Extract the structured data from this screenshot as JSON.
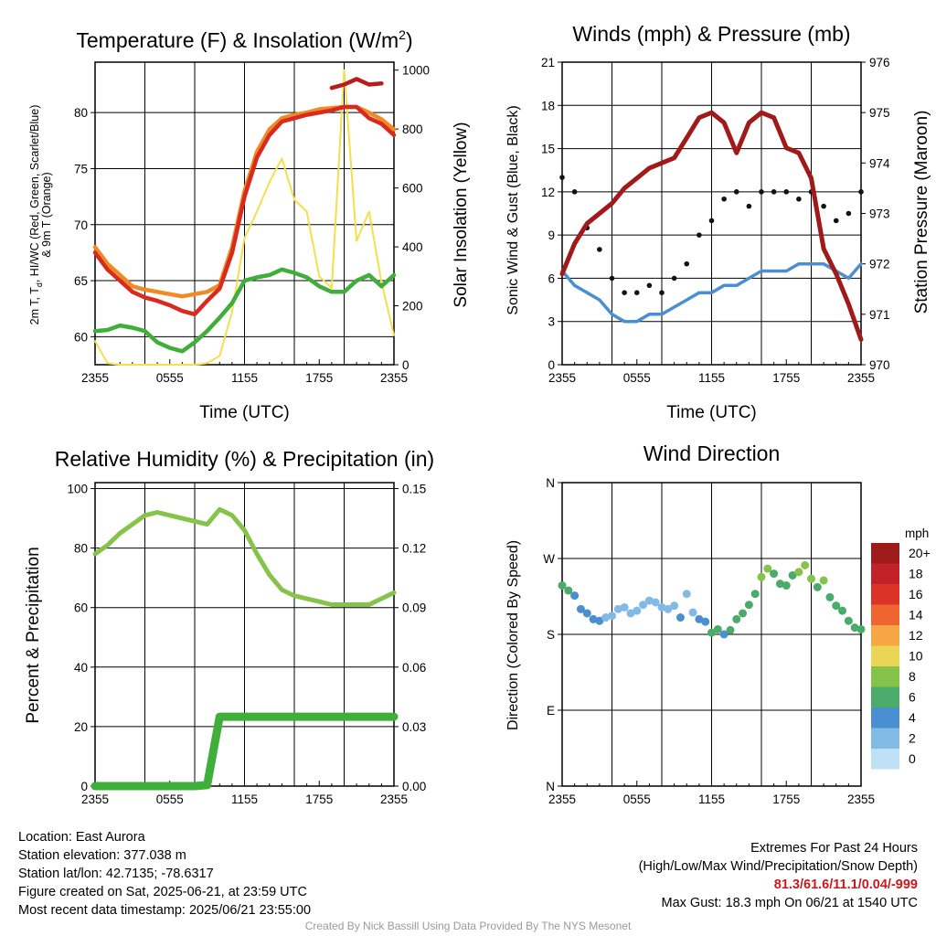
{
  "x_ticks": [
    "2355",
    "0555",
    "1155",
    "1755",
    "2355"
  ],
  "chart_data": [
    {
      "type": "line",
      "title": "Temperature (F) & Insolation (W/m",
      "title_sup": "2",
      "title_end": ")",
      "xlabel": "Time (UTC)",
      "ylabel_lines": [
        "2m T, T",
        "d",
        ", HI/WC (Red, Green, Scarlet/Blue)",
        "& 9m T (Orange)"
      ],
      "ylabel_right": "Solar Insolation (Yellow)",
      "ylim": [
        57.5,
        84.5
      ],
      "ylim_right": [
        0,
        1027
      ],
      "yticks_left": [
        "60",
        "65",
        "70",
        "75",
        "80"
      ],
      "yticks_left_values": [
        60,
        65,
        70,
        75,
        80
      ],
      "yticks_right": [
        "0",
        "200",
        "400",
        "600",
        "800",
        "1000"
      ],
      "yticks_right_values": [
        0,
        200,
        400,
        600,
        800,
        1000
      ],
      "x": [
        0,
        1,
        2,
        3,
        4,
        5,
        6,
        7,
        8,
        9,
        10,
        11,
        12,
        13,
        14,
        15,
        16,
        17,
        18,
        19,
        20,
        21,
        22,
        23,
        24
      ],
      "series": [
        {
          "color": "#f5df4d",
          "axis": "right",
          "values": [
            80,
            5,
            0,
            0,
            0,
            0,
            0,
            0,
            0,
            5,
            30,
            180,
            430,
            520,
            620,
            700,
            560,
            520,
            300,
            260,
            1000,
            420,
            520,
            280,
            100
          ]
        },
        {
          "color": "#f08a24",
          "axis": "left",
          "values": [
            68,
            66.5,
            65.5,
            64.5,
            64.2,
            64,
            63.8,
            63.6,
            63.8,
            64,
            64.6,
            68,
            73,
            76.5,
            78.5,
            79.5,
            79.8,
            80,
            80.3,
            80.4,
            80.5,
            80.5,
            80,
            79.4,
            78.5
          ]
        },
        {
          "color": "#d82a1e",
          "axis": "left",
          "values": [
            67.5,
            66,
            65,
            64,
            63.5,
            63.2,
            62.8,
            62.3,
            62,
            63.2,
            64.3,
            67.5,
            72.5,
            76,
            78,
            79.2,
            79.5,
            79.8,
            80,
            80.2,
            80.5,
            80.5,
            79.5,
            79,
            78
          ]
        },
        {
          "color": "#b81c1c",
          "axis": "left",
          "values": [
            null,
            null,
            null,
            null,
            null,
            null,
            null,
            null,
            null,
            null,
            null,
            null,
            null,
            null,
            null,
            null,
            null,
            null,
            null,
            82.2,
            82.5,
            83,
            82.5,
            82.6,
            null
          ]
        },
        {
          "color": "#3fae3a",
          "axis": "left",
          "values": [
            60.5,
            60.6,
            61,
            60.8,
            60.5,
            59.5,
            59,
            58.7,
            59.5,
            60.5,
            61.7,
            63,
            65,
            65.3,
            65.5,
            66,
            65.7,
            65.3,
            64.5,
            64,
            64,
            65,
            65.5,
            64.5,
            65.5
          ]
        }
      ]
    },
    {
      "type": "line",
      "title": "Winds (mph) & Pressure (mb)",
      "xlabel": "Time (UTC)",
      "ylabel": "Sonic Wind & Gust (Blue, Black)",
      "ylabel_right": "Station Pressure (Maroon)",
      "ylim": [
        0,
        21
      ],
      "ylim_right": [
        970,
        976
      ],
      "yticks_left": [
        "0",
        "3",
        "6",
        "9",
        "12",
        "15",
        "18",
        "21"
      ],
      "yticks_left_values": [
        0,
        3,
        6,
        9,
        12,
        15,
        18,
        21
      ],
      "yticks_right": [
        "970",
        "971",
        "972",
        "973",
        "974",
        "975",
        "976"
      ],
      "yticks_right_values": [
        970,
        971,
        972,
        973,
        974,
        975,
        976
      ],
      "x": [
        0,
        1,
        2,
        3,
        4,
        5,
        6,
        7,
        8,
        9,
        10,
        11,
        12,
        13,
        14,
        15,
        16,
        17,
        18,
        19,
        20,
        21,
        22,
        23,
        24
      ],
      "wind": [
        6.5,
        5.5,
        5,
        4.5,
        3.5,
        3,
        3,
        3.5,
        3.5,
        4,
        4.5,
        5,
        5,
        5.5,
        5.5,
        6,
        6.5,
        6.5,
        6.5,
        7,
        7,
        7,
        6.5,
        6,
        7
      ],
      "gust": [
        13,
        12,
        9.5,
        8,
        6,
        5,
        5,
        5.5,
        5,
        6,
        7,
        9,
        10,
        11.5,
        12,
        11,
        12,
        12,
        12,
        11.5,
        12,
        11,
        10,
        10.5,
        12
      ],
      "pressure": [
        971.8,
        972.4,
        972.8,
        973,
        973.2,
        973.5,
        973.7,
        973.9,
        974,
        974.1,
        974.5,
        974.9,
        975,
        974.8,
        974.2,
        974.8,
        975,
        974.9,
        974.3,
        974.2,
        973.7,
        972.3,
        971.8,
        971.2,
        970.5
      ],
      "wind_color": "#4a8fd0",
      "gust_color": "#111111",
      "pressure_color": "#a01a1a"
    },
    {
      "type": "line",
      "title": "Relative Humidity (%) & Precipitation (in)",
      "ylabel": "Percent & Precipitation",
      "ylim": [
        0,
        102
      ],
      "ylim_right": [
        0,
        0.153
      ],
      "yticks_left": [
        "0",
        "20",
        "40",
        "60",
        "80",
        "100"
      ],
      "yticks_left_values": [
        0,
        20,
        40,
        60,
        80,
        100
      ],
      "yticks_right": [
        "0.00",
        "0.03",
        "0.06",
        "0.09",
        "0.12",
        "0.15"
      ],
      "yticks_right_values": [
        0,
        0.03,
        0.06,
        0.09,
        0.12,
        0.15
      ],
      "x": [
        0,
        1,
        2,
        3,
        4,
        5,
        6,
        7,
        8,
        9,
        10,
        11,
        12,
        13,
        14,
        15,
        16,
        17,
        18,
        19,
        20,
        21,
        22,
        23,
        24
      ],
      "series": [
        {
          "color": "#86c34a",
          "axis": "left",
          "values": [
            78,
            81,
            85,
            88,
            91,
            92,
            91,
            90,
            89,
            88,
            93,
            91,
            86,
            78,
            71,
            66,
            64,
            63,
            62,
            61,
            61,
            61,
            61,
            63,
            65
          ]
        },
        {
          "color": "#3fae3a",
          "axis": "right",
          "values": [
            0,
            0,
            0,
            0,
            0,
            0,
            0,
            0,
            0,
            0.0005,
            0.035,
            0.035,
            0.035,
            0.035,
            0.035,
            0.035,
            0.035,
            0.035,
            0.035,
            0.035,
            0.035,
            0.035,
            0.035,
            0.035,
            0.035
          ]
        }
      ]
    },
    {
      "type": "scatter",
      "title": "Wind Direction",
      "ylabel": "Direction (Colored By Speed)",
      "ylim": [
        0,
        360
      ],
      "yticks_left": [
        "N",
        "E",
        "S",
        "W",
        "N"
      ],
      "yticks_left_values": [
        0,
        90,
        180,
        270,
        360
      ],
      "x": [
        0,
        0.5,
        1,
        1.5,
        2,
        2.5,
        3,
        3.5,
        4,
        4.5,
        5,
        5.5,
        6,
        6.5,
        7,
        7.5,
        8,
        8.5,
        9,
        9.5,
        10,
        10.5,
        11,
        11.5,
        12,
        12.5,
        13,
        13.5,
        14,
        14.5,
        15,
        15.5,
        16,
        16.5,
        17,
        17.5,
        18,
        18.5,
        19,
        19.5,
        20,
        20.5,
        21,
        21.5,
        22,
        22.5,
        23,
        23.5,
        24
      ],
      "y": [
        238,
        232,
        226,
        210,
        205,
        198,
        196,
        200,
        202,
        210,
        212,
        205,
        208,
        215,
        220,
        218,
        212,
        210,
        214,
        200,
        228,
        206,
        198,
        195,
        182,
        186,
        180,
        185,
        198,
        205,
        215,
        228,
        248,
        258,
        252,
        240,
        238,
        250,
        254,
        262,
        246,
        236,
        244,
        224,
        214,
        208,
        196,
        188,
        186
      ],
      "speed": [
        6,
        6,
        5,
        4,
        4,
        4,
        4,
        2,
        2,
        2,
        3,
        3,
        2,
        2,
        2,
        2,
        3,
        3,
        3,
        4,
        2,
        2,
        4,
        4,
        6,
        6,
        5,
        6,
        6,
        7,
        7,
        7,
        8,
        8,
        7,
        7,
        6,
        6,
        8,
        9,
        8,
        7,
        8,
        7,
        7,
        6,
        6,
        6,
        6
      ],
      "legend_title": "mph",
      "legend_labels": [
        "20+",
        "18",
        "16",
        "14",
        "12",
        "10",
        "8",
        "6",
        "4",
        "2",
        "0"
      ],
      "legend_colors": [
        "#9e1b1b",
        "#c2222a",
        "#dc3328",
        "#ef6530",
        "#f7a646",
        "#ead557",
        "#86c34a",
        "#4aab6a",
        "#4a8fd0",
        "#82bae6",
        "#bfe1f5"
      ]
    }
  ],
  "info_left": [
    "Location: East Aurora",
    "Station elevation: 377.038 m",
    "Station lat/lon: 42.7135; -78.6317",
    "Figure created on Sat, 2025-06-21, at 23:59 UTC",
    "Most recent data timestamp: 2025/06/21 23:55:00"
  ],
  "extremes": {
    "title": "Extremes For Past 24 Hours",
    "subtitle": "(High/Low/Max Wind/Precipitation/Snow Depth)",
    "values": "81.3/61.6/11.1/0.04/-999",
    "gust": "Max Gust: 18.3 mph On 06/21 at 1540 UTC"
  },
  "footer": "Created By Nick Bassill Using Data Provided By The NYS Mesonet"
}
